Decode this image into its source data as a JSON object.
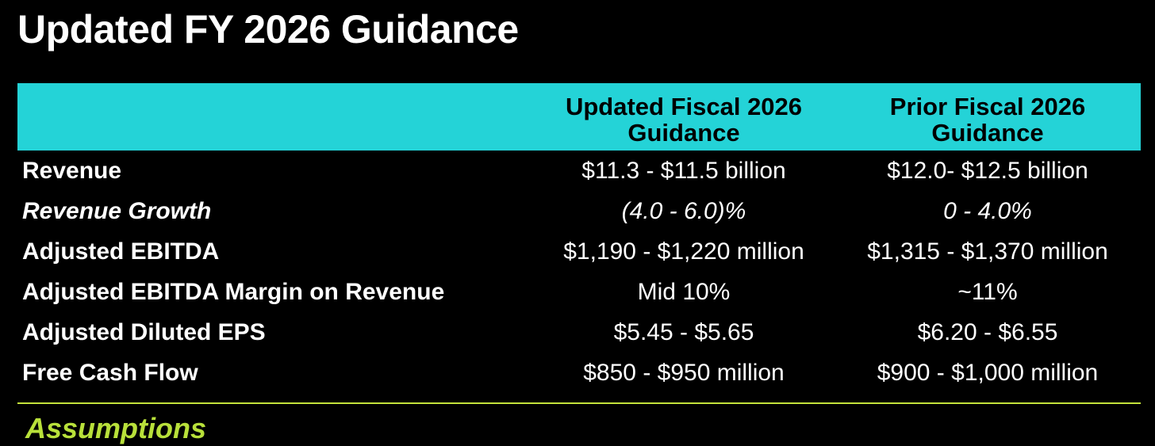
{
  "page": {
    "title": "Updated FY 2026 Guidance"
  },
  "colors": {
    "background": "#000000",
    "header_band": "#24d3d7",
    "divider": "#c4e33b",
    "assumptions_heading": "#b8e03a"
  },
  "table": {
    "columns": {
      "updated": "Updated Fiscal 2026 Guidance",
      "prior": "Prior Fiscal 2026 Guidance"
    },
    "rows": [
      {
        "label": "Revenue",
        "updated": "$11.3 - $11.5 billion",
        "prior": "$12.0- $12.5 billion",
        "italic": false
      },
      {
        "label": "Revenue Growth",
        "updated": "(4.0 - 6.0)%",
        "prior": "0 - 4.0%",
        "italic": true
      },
      {
        "label": "Adjusted EBITDA",
        "updated": "$1,190 - $1,220 million",
        "prior": "$1,315 - $1,370 million",
        "italic": false
      },
      {
        "label": "Adjusted EBITDA Margin on Revenue",
        "updated": "Mid 10%",
        "prior": "~11%",
        "italic": false
      },
      {
        "label": "Adjusted Diluted EPS",
        "updated": "$5.45 - $5.65",
        "prior": "$6.20 - $6.55",
        "italic": false
      },
      {
        "label": "Free Cash Flow",
        "updated": "$850 - $950 million",
        "prior": "$900 - $1,000 million",
        "italic": false
      }
    ]
  },
  "assumptions": {
    "heading": "Assumptions"
  }
}
